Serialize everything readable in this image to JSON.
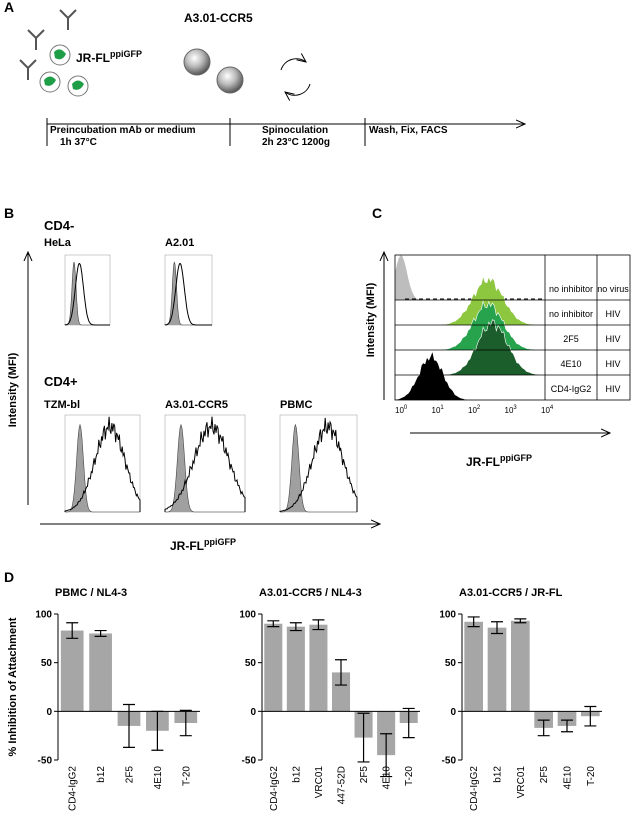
{
  "panel_a": {
    "label": "A",
    "virus": "JR-FL",
    "virus_sup": "ppiGFP",
    "cell_line": "A3.01-CCR5",
    "steps": [
      {
        "title": "Preincubation mAb or medium",
        "detail": "1h 37°C"
      },
      {
        "title": "Spinoculation",
        "detail": "2h 23°C 1200g"
      },
      {
        "title": "Wash, Fix, FACS"
      }
    ]
  },
  "panel_b": {
    "label": "B",
    "y_label": "Intensity (MFI)",
    "x_label": "JR-FL",
    "x_label_sup": "ppiGFP",
    "groups": [
      {
        "name": "CD4-",
        "cells": [
          "HeLa",
          "A2.01"
        ]
      },
      {
        "name": "CD4+",
        "cells": [
          "TZM-bl",
          "A3.01-CCR5",
          "PBMC"
        ]
      }
    ]
  },
  "panel_c": {
    "label": "C",
    "y_label": "Intensity (MFI)",
    "x_label": "JR-FL",
    "x_label_sup": "ppiGFP",
    "x_ticks": [
      {
        "base": "10",
        "exp": "0"
      },
      {
        "base": "10",
        "exp": "1"
      },
      {
        "base": "10",
        "exp": "2"
      },
      {
        "base": "10",
        "exp": "3"
      },
      {
        "base": "10",
        "exp": "4"
      }
    ],
    "rows": [
      [
        "no inhibitor",
        "no virus"
      ],
      [
        "no inhibitor",
        "HIV"
      ],
      [
        "2F5",
        "HIV"
      ],
      [
        "4E10",
        "HIV"
      ],
      [
        "CD4-IgG2",
        "HIV"
      ]
    ]
  },
  "panel_d": {
    "label": "D"
  },
  "chart_data": [
    {
      "type": "bar",
      "title": "PBMC / NL4-3",
      "ylabel": "% Inhibition of Attachment",
      "color": "#a6a6a6",
      "categories": [
        "CD4-IgG2",
        "b12",
        "2F5",
        "4E10",
        "T-20"
      ],
      "values": [
        83,
        80,
        -15,
        -20,
        -12
      ],
      "errors": [
        8,
        3,
        22,
        20,
        13
      ],
      "ylim": [
        -50,
        100
      ],
      "yticks": [
        -50,
        0,
        50,
        100
      ]
    },
    {
      "type": "bar",
      "title": "A3.01-CCR5 / NL4-3",
      "color": "#a6a6a6",
      "categories": [
        "CD4-IgG2",
        "b12",
        "VRC01",
        "447-52D",
        "2F5",
        "4E10",
        "T-20"
      ],
      "values": [
        90,
        87,
        89,
        40,
        -27,
        -45,
        -12
      ],
      "errors": [
        3,
        4,
        5,
        13,
        25,
        22,
        15
      ],
      "ylim": [
        -50,
        100
      ],
      "yticks": [
        -50,
        0,
        50,
        100
      ]
    },
    {
      "type": "bar",
      "title": "A3.01-CCR5 / JR-FL",
      "color": "#a6a6a6",
      "categories": [
        "CD4-IgG2",
        "b12",
        "VRC01",
        "2F5",
        "4E10",
        "T-20"
      ],
      "values": [
        92,
        86,
        93,
        -17,
        -15,
        -5
      ],
      "errors": [
        5,
        6,
        2,
        8,
        6,
        10
      ],
      "ylim": [
        -50,
        100
      ],
      "yticks": [
        -50,
        0,
        50,
        100
      ]
    }
  ]
}
